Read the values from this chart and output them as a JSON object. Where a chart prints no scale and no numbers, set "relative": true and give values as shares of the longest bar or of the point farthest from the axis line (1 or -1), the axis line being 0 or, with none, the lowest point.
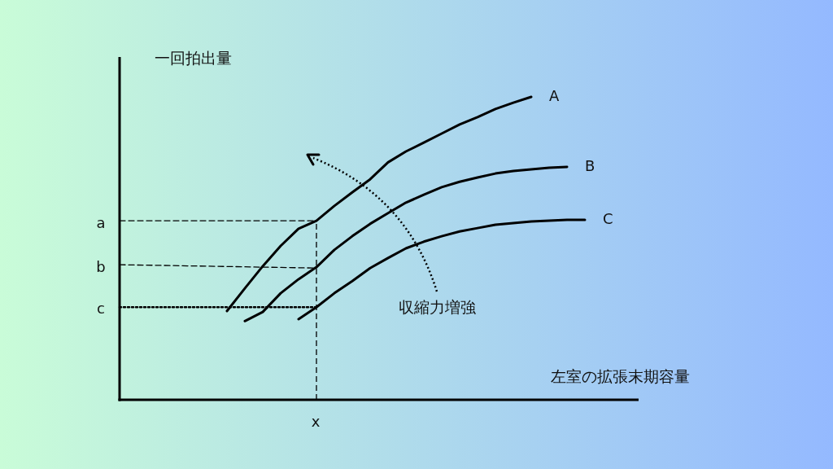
{
  "chart_data": {
    "type": "line",
    "xlabel": "左室の拡張末期容量",
    "ylabel": "一回拍出量",
    "categories": [
      null,
      null,
      null,
      null,
      null,
      null,
      null,
      null,
      null,
      null,
      null,
      null,
      null,
      null,
      null,
      null,
      null,
      null,
      null,
      null,
      null,
      null,
      null,
      null,
      null,
      null,
      null,
      null,
      null,
      null
    ],
    "relative": true,
    "series": [
      {
        "name": "A",
        "color": "#000000",
        "line_style": "solid",
        "values": [
          null,
          null,
          null,
          null,
          null,
          null,
          0.293,
          0.368,
          0.441,
          0.508,
          0.565,
          0.591,
          0.64,
          0.685,
          0.728,
          0.784,
          0.82,
          0.849,
          0.879,
          0.909,
          0.933,
          0.96,
          0.981,
          1.0,
          null,
          null,
          null,
          null,
          null,
          null
        ]
      },
      {
        "name": "B",
        "color": "#000000",
        "line_style": "solid",
        "values": [
          null,
          null,
          null,
          null,
          null,
          null,
          null,
          0.26,
          0.29,
          0.352,
          0.398,
          0.438,
          0.495,
          0.54,
          0.581,
          0.616,
          0.651,
          0.677,
          0.702,
          0.72,
          0.734,
          0.747,
          0.755,
          0.761,
          0.766,
          0.769,
          null,
          null,
          null,
          null
        ]
      },
      {
        "name": "C",
        "color": "#000000",
        "line_style": "solid",
        "values": [
          null,
          null,
          null,
          null,
          null,
          null,
          null,
          null,
          null,
          null,
          0.266,
          0.306,
          0.352,
          0.392,
          0.435,
          0.468,
          0.5,
          0.522,
          0.54,
          0.556,
          0.567,
          0.578,
          0.583,
          0.589,
          0.591,
          0.594,
          0.594,
          null,
          null,
          null
        ]
      },
      {
        "color": "#000000",
        "line_style": "dashed",
        "values": [
          0.591,
          0.591,
          0.591,
          0.591,
          0.591,
          0.591,
          0.591,
          0.591,
          0.591,
          0.591,
          0.591,
          0.591,
          null,
          null,
          null,
          null,
          null,
          null,
          null,
          null,
          null,
          null,
          null,
          null,
          null,
          null,
          null,
          null,
          null,
          null
        ]
      },
      {
        "color": "#000000",
        "line_style": "dashed",
        "values": [
          0.446,
          0.445,
          0.444,
          0.443,
          0.442,
          0.441,
          0.44,
          0.439,
          0.438,
          0.437,
          0.436,
          0.435,
          null,
          null,
          null,
          null,
          null,
          null,
          null,
          null,
          null,
          null,
          null,
          null,
          null,
          null,
          null,
          null,
          null,
          null
        ]
      },
      {
        "color": "#000000",
        "line_style": "dotted",
        "values": [
          0.306,
          0.306,
          0.306,
          0.306,
          0.306,
          0.306,
          0.306,
          0.306,
          0.306,
          0.306,
          0.306,
          0.306,
          null,
          null,
          null,
          null,
          null,
          null,
          null,
          null,
          null,
          null,
          null,
          null,
          null,
          null,
          null,
          null,
          null,
          null
        ]
      }
    ],
    "annotations": [
      "a",
      "b",
      "c",
      "x",
      "収縮力増強"
    ]
  }
}
